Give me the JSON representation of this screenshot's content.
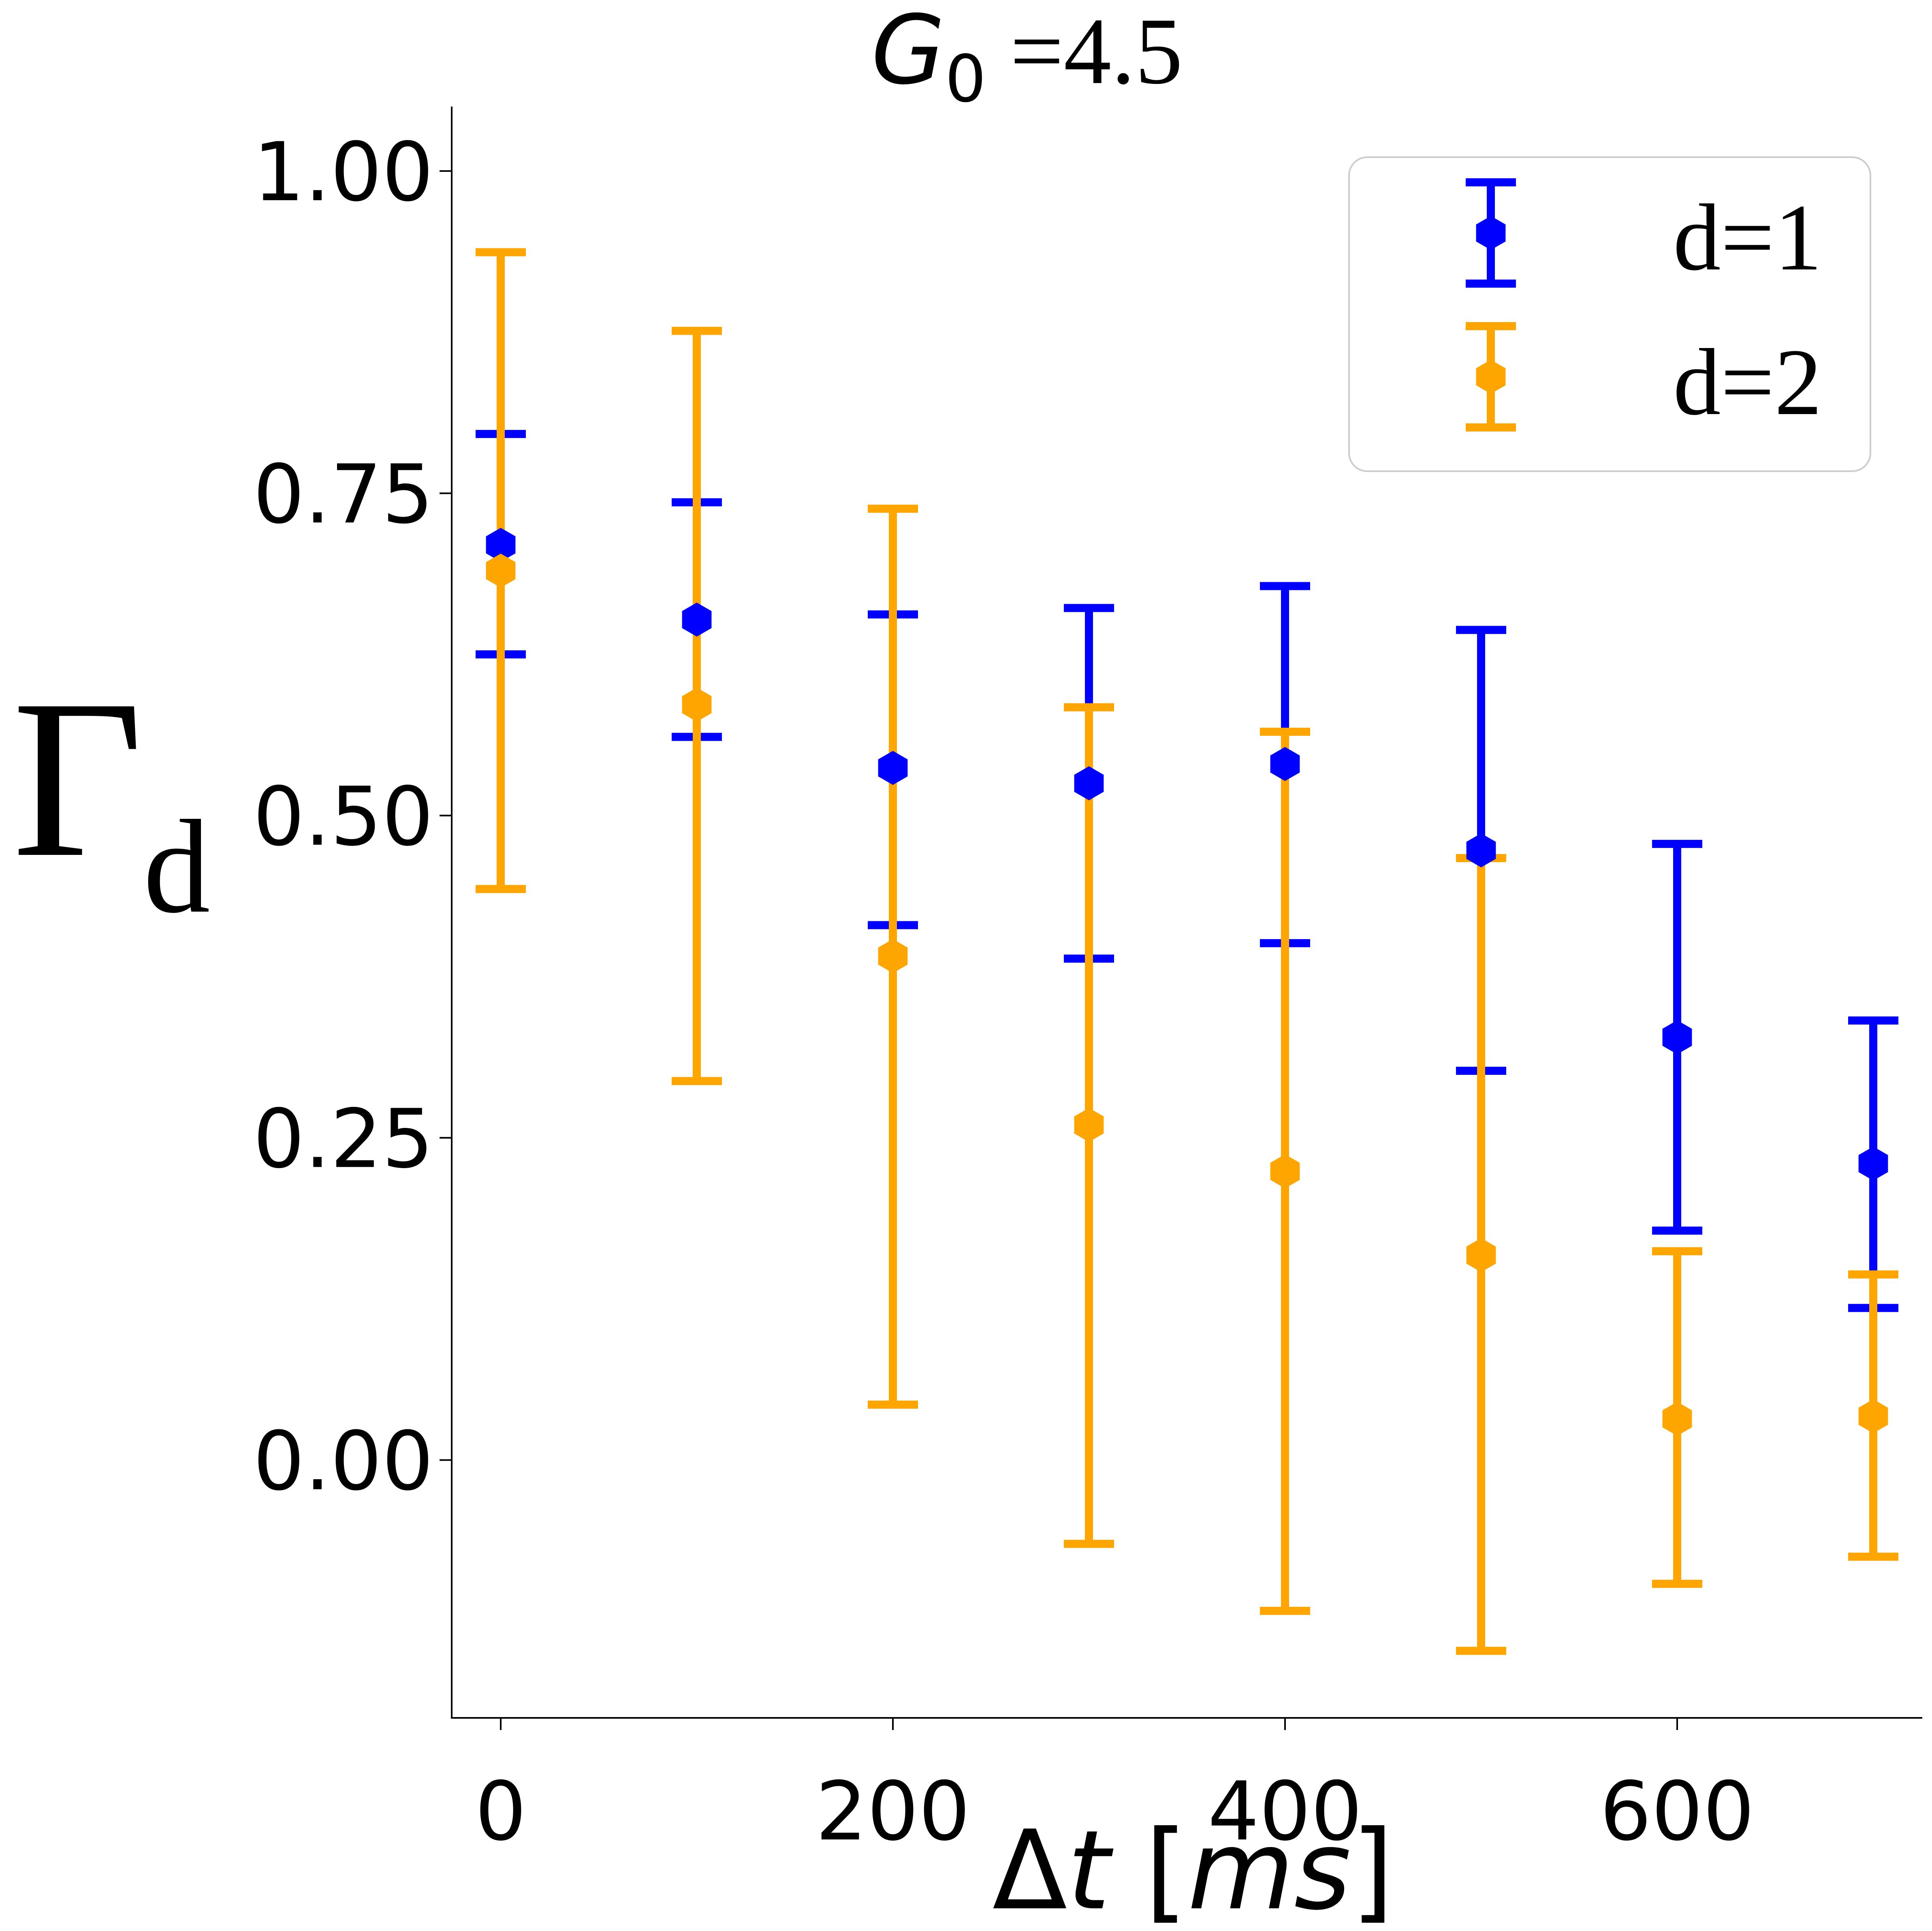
{
  "chart_data": {
    "type": "errorbar",
    "title": {
      "symbol": "G",
      "subscript": "0",
      "suffix": " =4.5"
    },
    "xlabel": {
      "prefix": "Δ",
      "var": "t",
      "bracket_open": " [",
      "unit": "ms",
      "bracket_close": "]"
    },
    "ylabel": {
      "symbol": "Γ",
      "subscript": "d"
    },
    "xlim": [
      -25,
      725
    ],
    "ylim": [
      -0.2,
      1.05
    ],
    "x_ticks": [
      0,
      200,
      400,
      600
    ],
    "x_tick_labels": [
      "0",
      "200",
      "400",
      "600"
    ],
    "y_ticks": [
      0.0,
      0.25,
      0.5,
      0.75,
      1.0
    ],
    "y_tick_labels": [
      "0.00",
      "0.25",
      "0.50",
      "0.75",
      "1.00"
    ],
    "grid": false,
    "legend_position": "top-right",
    "series": [
      {
        "name": "d=1",
        "color": "#0000ff",
        "x": [
          0,
          100,
          200,
          300,
          400,
          500,
          600,
          700
        ],
        "y": [
          0.71,
          0.652,
          0.537,
          0.525,
          0.54,
          0.473,
          0.328,
          0.23
        ],
        "err_low": [
          0.625,
          0.561,
          0.415,
          0.389,
          0.401,
          0.302,
          0.178,
          0.118
        ],
        "err_high": [
          0.796,
          0.743,
          0.656,
          0.661,
          0.678,
          0.644,
          0.478,
          0.341
        ]
      },
      {
        "name": "d=2",
        "color": "#ffa500",
        "x": [
          0,
          100,
          200,
          300,
          400,
          500,
          600,
          700
        ],
        "y": [
          0.69,
          0.586,
          0.391,
          0.26,
          0.224,
          0.159,
          0.032,
          0.034
        ],
        "err_low": [
          0.443,
          0.294,
          0.043,
          -0.065,
          -0.117,
          -0.148,
          -0.096,
          -0.075
        ],
        "err_high": [
          0.937,
          0.876,
          0.738,
          0.584,
          0.565,
          0.467,
          0.162,
          0.144
        ]
      }
    ]
  }
}
